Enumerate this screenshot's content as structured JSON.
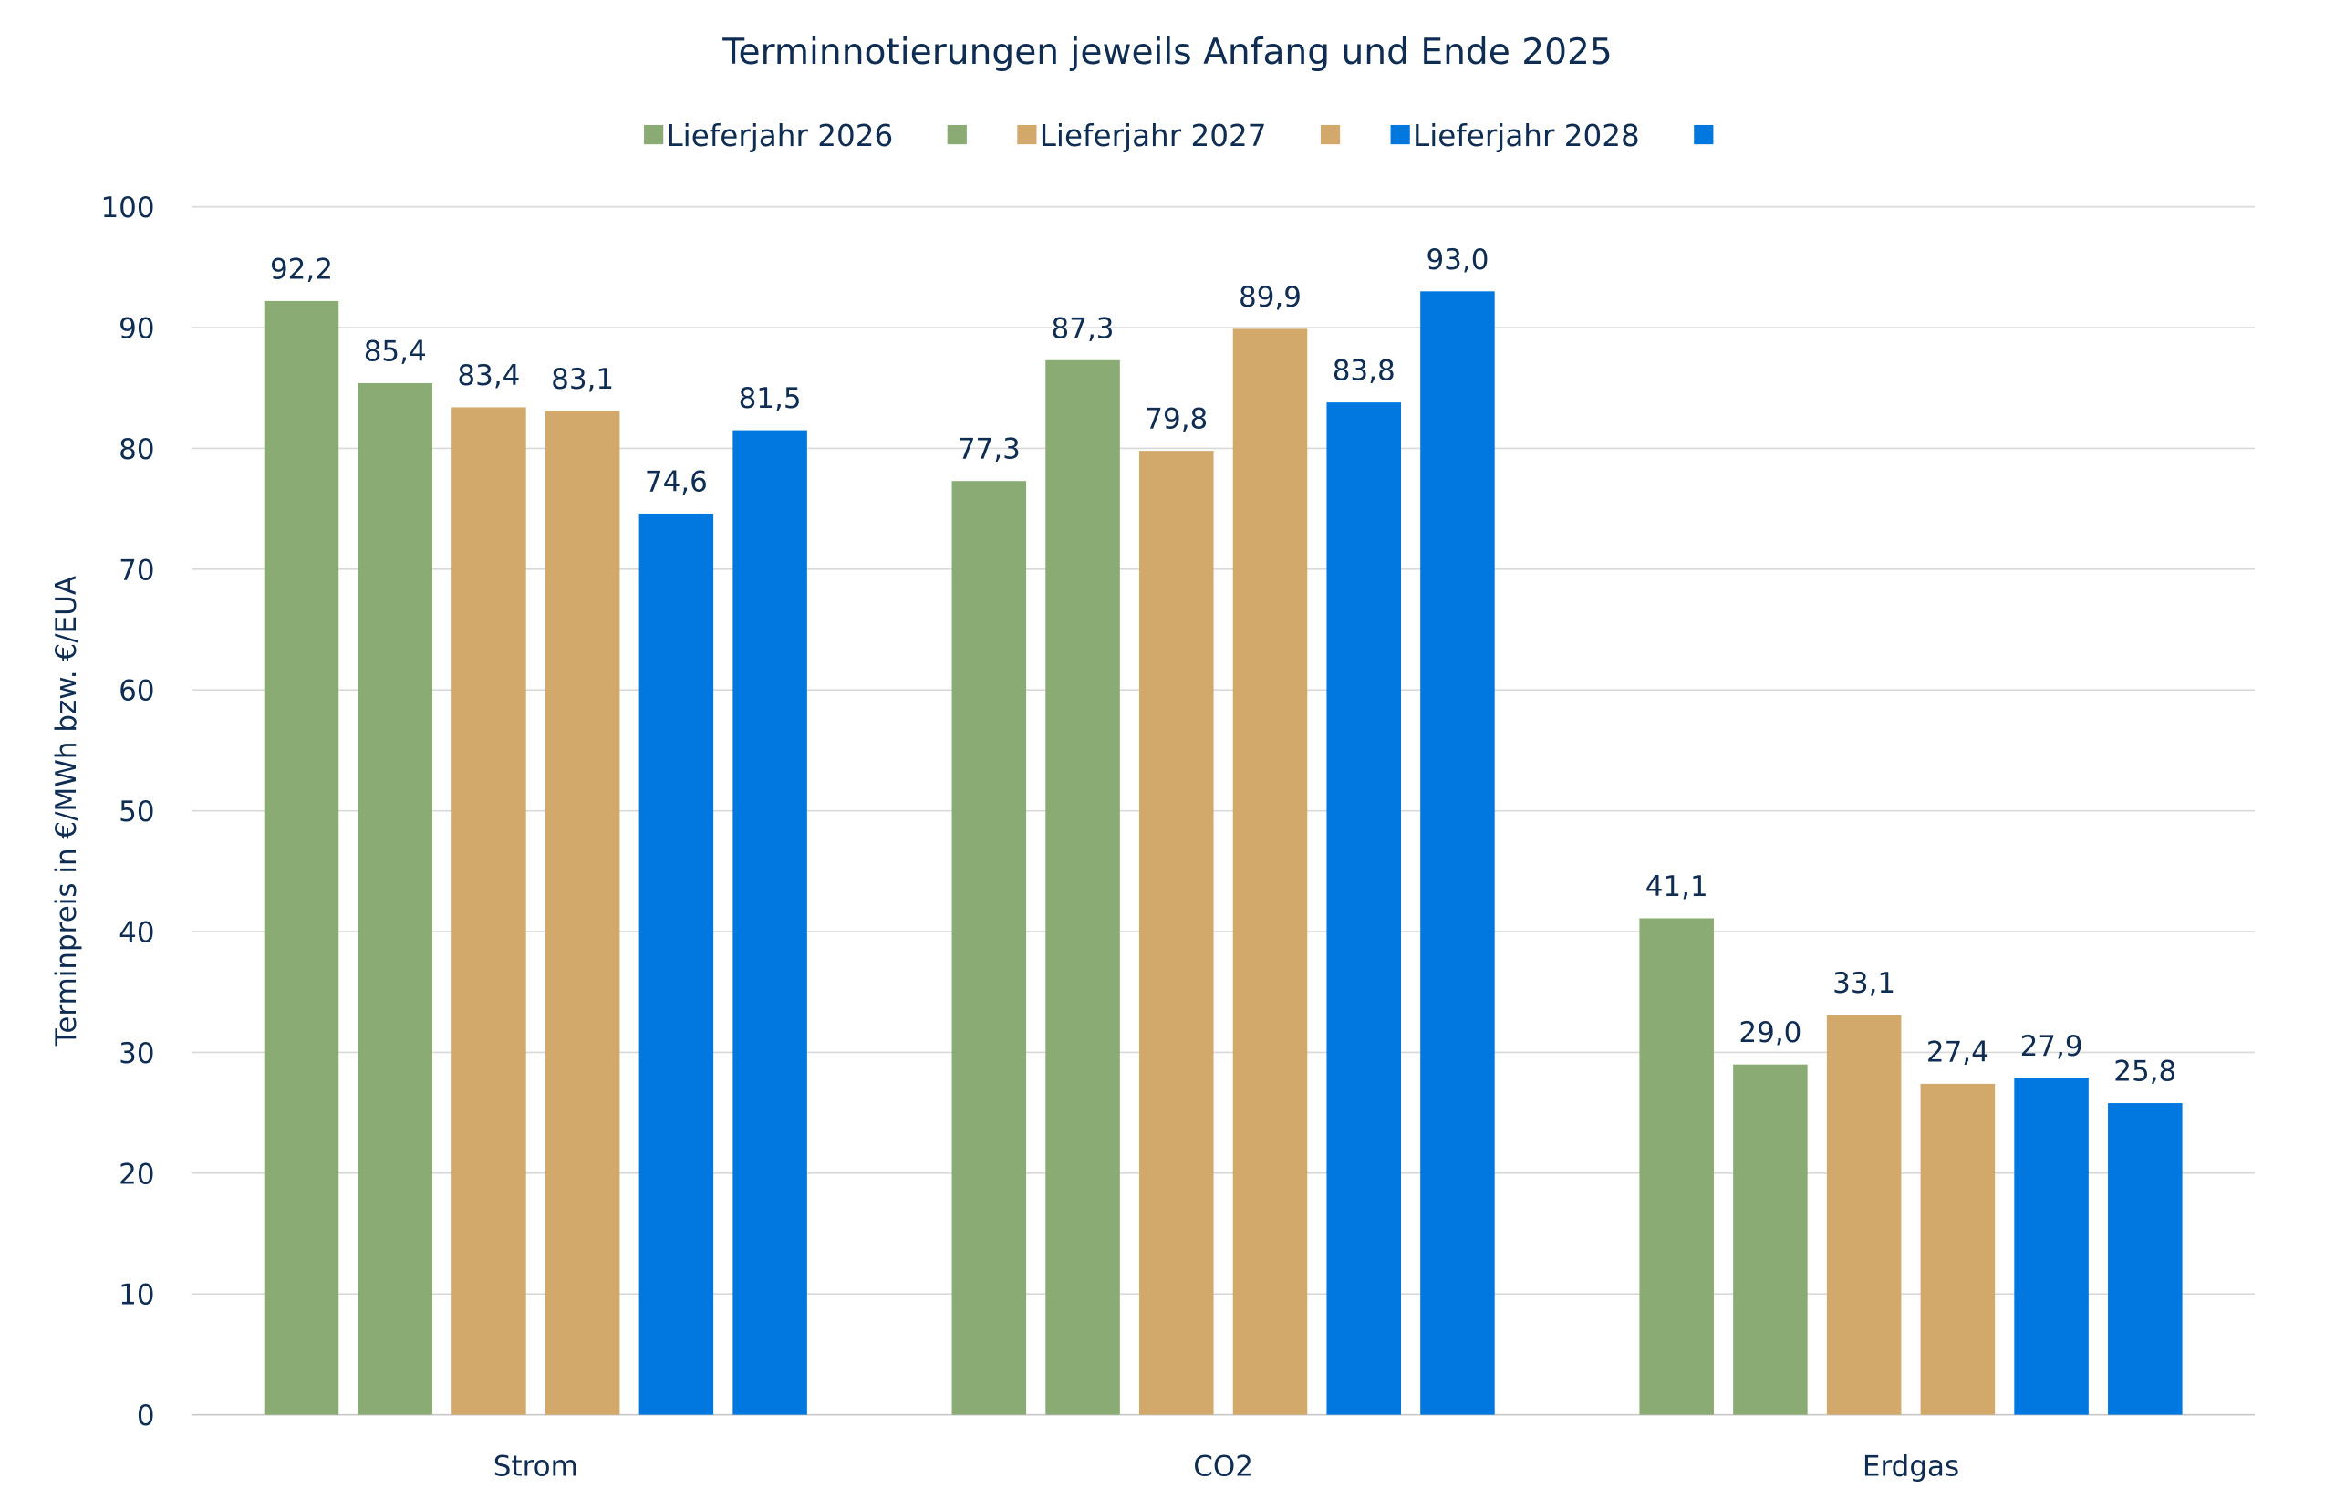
{
  "chart_data": {
    "type": "bar",
    "title": "Terminnotierungen jeweils Anfang und Ende 2025",
    "xlabel": "",
    "ylabel": "Terminpreis in €/MWh bzw. €/EUA",
    "ylim": [
      0,
      100
    ],
    "yticks": [
      "0",
      "10",
      "20",
      "30",
      "40",
      "50",
      "60",
      "70",
      "80",
      "90",
      "100"
    ],
    "grid": true,
    "legend_position": "top",
    "categories": [
      "Strom",
      "CO2",
      "Erdgas"
    ],
    "series": [
      {
        "name": "Lieferjahr 2026",
        "color": "#8aab74",
        "values": [
          92.2,
          77.3,
          41.1
        ],
        "labels": [
          "92,2",
          "77,3",
          "41,1"
        ]
      },
      {
        "name": "",
        "color": "#8aab74",
        "values": [
          85.4,
          87.3,
          29.0
        ],
        "labels": [
          "85,4",
          "87,3",
          "29,0"
        ]
      },
      {
        "name": "Lieferjahr 2027",
        "color": "#d2a96b",
        "values": [
          83.4,
          79.8,
          33.1
        ],
        "labels": [
          "83,4",
          "79,8",
          "33,1"
        ]
      },
      {
        "name": "",
        "color": "#d2a96b",
        "values": [
          83.1,
          89.9,
          27.4
        ],
        "labels": [
          "83,1",
          "89,9",
          "27,4"
        ]
      },
      {
        "name": "Lieferjahr 2028",
        "color": "#0078e0",
        "values": [
          74.6,
          83.8,
          27.9
        ],
        "labels": [
          "74,6",
          "83,8",
          "27,9"
        ]
      },
      {
        "name": "",
        "color": "#0078e0",
        "values": [
          81.5,
          93.0,
          25.8
        ],
        "labels": [
          "81,5",
          "93,0",
          "25,8"
        ]
      }
    ]
  }
}
